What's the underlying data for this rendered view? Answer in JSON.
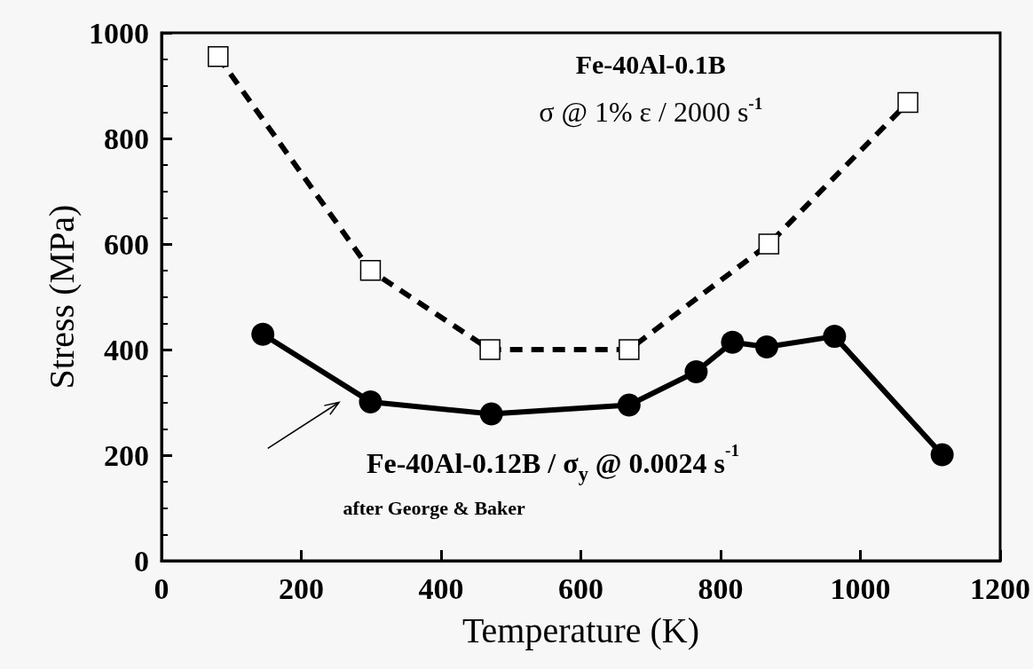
{
  "chart_data": {
    "type": "line",
    "xlabel": "Temperature (K)",
    "ylabel": "Stress (MPa)",
    "xlim": [
      0,
      1200
    ],
    "xticks": [
      0,
      200,
      400,
      600,
      800,
      1000,
      1200
    ],
    "ylim": [
      0,
      1000
    ],
    "yticks": [
      0,
      200,
      400,
      600,
      800,
      1000
    ],
    "grid": false,
    "series": [
      {
        "color": "#000000",
        "marker": "square",
        "line_style": "dashed",
        "x": [
          81,
          299,
          470,
          669,
          869,
          1068
        ],
        "values": [
          955,
          550,
          400,
          400,
          600,
          868
        ]
      },
      {
        "color": "#000000",
        "marker": "circle",
        "line_style": "solid",
        "x": [
          145,
          299,
          472,
          669,
          765,
          817,
          866,
          963,
          1117
        ],
        "values": [
          429,
          301,
          278,
          295,
          358,
          414,
          405,
          425,
          201
        ]
      }
    ],
    "annotations": [
      "Fe-40Al-0.1B",
      "σ @ 1% ε / 2000 s$^{-1}$",
      "Fe-40Al-0.12B / σ$_{y}$ @ 0.0024 s$^{-1}$",
      "after George & Baker"
    ]
  }
}
